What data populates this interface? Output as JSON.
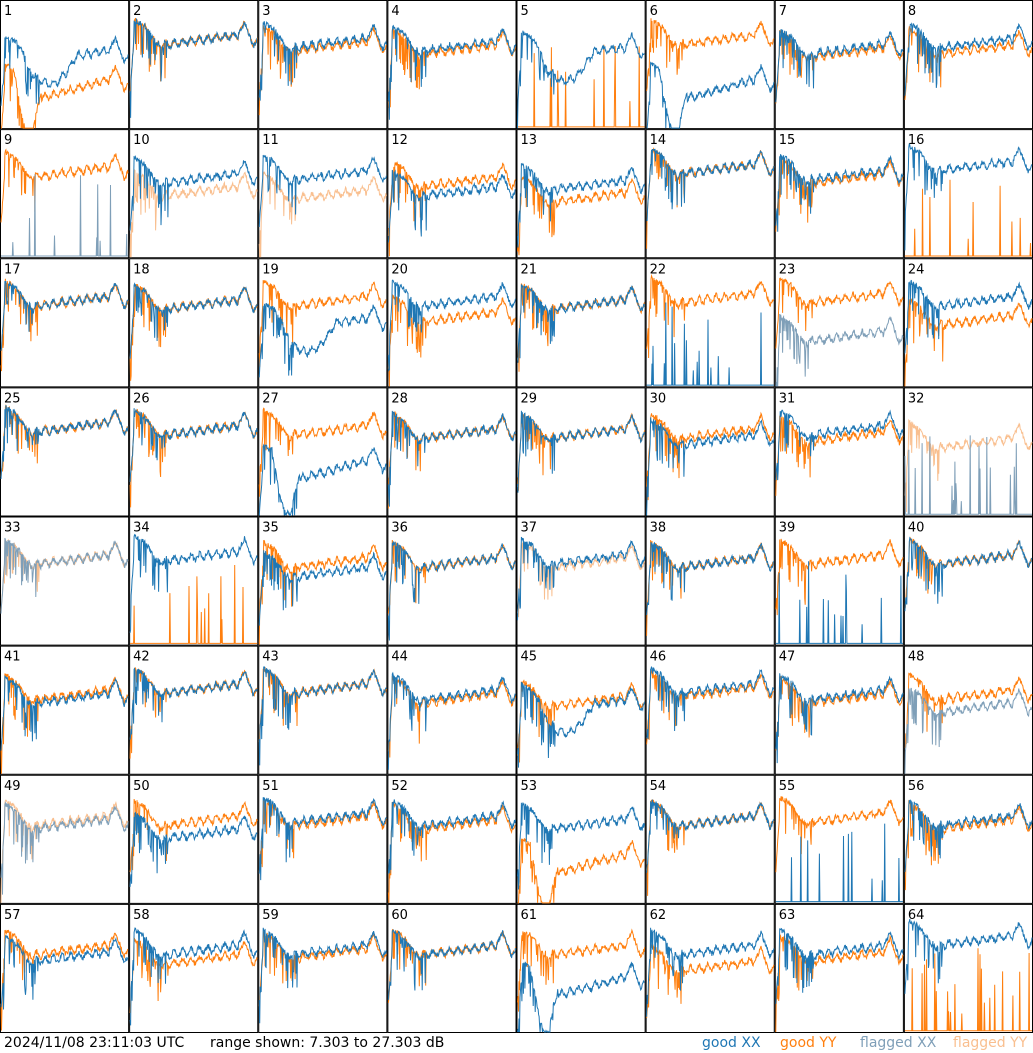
{
  "chart_data": {
    "type": "line",
    "layout": "small multiples, 8 x 8 grid of antenna spectra",
    "timestamp": "2024/11/08 23:11:03 UTC",
    "range_text": "range shown: 7.303 to 27.303 dB",
    "ylim": [
      7.303,
      27.303
    ],
    "unit": "dB",
    "grid": false,
    "legend_position": "bottom-right",
    "legend": [
      {
        "key": "good_xx",
        "label": "good XX",
        "color": "#1f77b4"
      },
      {
        "key": "good_yy",
        "label": "good YY",
        "color": "#ff7f0e"
      },
      {
        "key": "flagged_xx",
        "label": "flagged XX",
        "color": "#7f9fb8"
      },
      {
        "key": "flagged_yy",
        "label": "flagged YY",
        "color": "#f9bf8f"
      }
    ],
    "antennas": [
      {
        "label": "1",
        "xx": "good",
        "yy": "good",
        "xx_profile": "wide",
        "yy_profile": "dip",
        "xx_level": 19.5,
        "yy_level": 15.0
      },
      {
        "label": "2",
        "xx": "good",
        "yy": "good",
        "xx_profile": "std",
        "yy_profile": "std",
        "xx_level": 22.0,
        "yy_level": 22.0
      },
      {
        "label": "3",
        "xx": "good",
        "yy": "good",
        "xx_profile": "std",
        "yy_profile": "std",
        "xx_level": 21.5,
        "yy_level": 21.0
      },
      {
        "label": "4",
        "xx": "good",
        "yy": "good",
        "xx_profile": "std",
        "yy_profile": "std",
        "xx_level": 21.0,
        "yy_level": 20.5
      },
      {
        "label": "5",
        "xx": "good",
        "yy": "good",
        "xx_profile": "wide",
        "yy_profile": "spikes",
        "xx_level": 20.0,
        "yy_level": 7.5
      },
      {
        "label": "6",
        "xx": "good",
        "yy": "good",
        "xx_profile": "dip",
        "yy_profile": "std",
        "xx_level": 15.0,
        "yy_level": 22.0
      },
      {
        "label": "7",
        "xx": "good",
        "yy": "good",
        "xx_profile": "std",
        "yy_profile": "std",
        "xx_level": 20.5,
        "yy_level": 20.0
      },
      {
        "label": "8",
        "xx": "good",
        "yy": "good",
        "xx_profile": "std",
        "yy_profile": "std",
        "xx_level": 21.5,
        "yy_level": 20.5
      },
      {
        "label": "9",
        "xx": "flagged",
        "yy": "good",
        "xx_profile": "spikes",
        "yy_profile": "std",
        "xx_level": 7.5,
        "yy_level": 21.5
      },
      {
        "label": "10",
        "xx": "good",
        "yy": "flagged",
        "xx_profile": "std",
        "yy_profile": "std",
        "xx_level": 20.5,
        "yy_level": 18.5
      },
      {
        "label": "11",
        "xx": "good",
        "yy": "flagged",
        "xx_profile": "std",
        "yy_profile": "std",
        "xx_level": 21.0,
        "yy_level": 18.0
      },
      {
        "label": "12",
        "xx": "good",
        "yy": "good",
        "xx_profile": "std",
        "yy_profile": "std",
        "xx_level": 18.5,
        "yy_level": 20.0
      },
      {
        "label": "13",
        "xx": "good",
        "yy": "good",
        "xx_profile": "std",
        "yy_profile": "std",
        "xx_level": 19.5,
        "yy_level": 17.5
      },
      {
        "label": "14",
        "xx": "good",
        "yy": "good",
        "xx_profile": "std",
        "yy_profile": "std",
        "xx_level": 22.0,
        "yy_level": 22.0
      },
      {
        "label": "15",
        "xx": "good",
        "yy": "good",
        "xx_profile": "std",
        "yy_profile": "std",
        "xx_level": 21.0,
        "yy_level": 20.5
      },
      {
        "label": "16",
        "xx": "good",
        "yy": "good",
        "xx_profile": "std",
        "yy_profile": "spikes",
        "xx_level": 22.5,
        "yy_level": 7.5
      },
      {
        "label": "17",
        "xx": "good",
        "yy": "good",
        "xx_profile": "std",
        "yy_profile": "std",
        "xx_level": 21.5,
        "yy_level": 21.5
      },
      {
        "label": "18",
        "xx": "good",
        "yy": "good",
        "xx_profile": "std",
        "yy_profile": "std",
        "xx_level": 21.0,
        "yy_level": 21.0
      },
      {
        "label": "19",
        "xx": "good",
        "yy": "good",
        "xx_profile": "wide",
        "yy_profile": "std",
        "xx_level": 18.0,
        "yy_level": 21.5
      },
      {
        "label": "20",
        "xx": "good",
        "yy": "good",
        "xx_profile": "std",
        "yy_profile": "std",
        "xx_level": 21.5,
        "yy_level": 19.0
      },
      {
        "label": "21",
        "xx": "good",
        "yy": "good",
        "xx_profile": "std",
        "yy_profile": "std",
        "xx_level": 21.0,
        "yy_level": 21.0
      },
      {
        "label": "22",
        "xx": "good",
        "yy": "good",
        "xx_profile": "spikes",
        "yy_profile": "std",
        "xx_level": 7.5,
        "yy_level": 22.0
      },
      {
        "label": "23",
        "xx": "flagged",
        "yy": "good",
        "xx_profile": "std",
        "yy_profile": "std",
        "xx_level": 16.0,
        "yy_level": 22.0
      },
      {
        "label": "24",
        "xx": "good",
        "yy": "good",
        "xx_profile": "std",
        "yy_profile": "std",
        "xx_level": 21.5,
        "yy_level": 18.5
      },
      {
        "label": "25",
        "xx": "good",
        "yy": "good",
        "xx_profile": "std",
        "yy_profile": "std",
        "xx_level": 22.0,
        "yy_level": 22.0
      },
      {
        "label": "26",
        "xx": "good",
        "yy": "good",
        "xx_profile": "std",
        "yy_profile": "std",
        "xx_level": 21.5,
        "yy_level": 21.5
      },
      {
        "label": "27",
        "xx": "good",
        "yy": "good",
        "xx_profile": "dip",
        "yy_profile": "std",
        "xx_level": 16.0,
        "yy_level": 21.5
      },
      {
        "label": "28",
        "xx": "good",
        "yy": "good",
        "xx_profile": "std",
        "yy_profile": "std",
        "xx_level": 21.0,
        "yy_level": 21.0
      },
      {
        "label": "29",
        "xx": "good",
        "yy": "good",
        "xx_profile": "std",
        "yy_profile": "std",
        "xx_level": 21.0,
        "yy_level": 21.0
      },
      {
        "label": "30",
        "xx": "good",
        "yy": "good",
        "xx_profile": "std",
        "yy_profile": "std",
        "xx_level": 20.0,
        "yy_level": 21.0
      },
      {
        "label": "31",
        "xx": "good",
        "yy": "good",
        "xx_profile": "std",
        "yy_profile": "std",
        "xx_level": 21.5,
        "yy_level": 20.5
      },
      {
        "label": "32",
        "xx": "flagged",
        "yy": "flagged",
        "xx_profile": "spikes",
        "yy_profile": "std",
        "xx_level": 7.5,
        "yy_level": 19.5
      },
      {
        "label": "33",
        "xx": "flagged",
        "yy": "flagged",
        "xx_profile": "std",
        "yy_profile": "std",
        "xx_level": 21.5,
        "yy_level": 21.5
      },
      {
        "label": "34",
        "xx": "good",
        "yy": "good",
        "xx_profile": "std",
        "yy_profile": "spikes",
        "xx_level": 22.0,
        "yy_level": 7.5
      },
      {
        "label": "35",
        "xx": "good",
        "yy": "good",
        "xx_profile": "std",
        "yy_profile": "std",
        "xx_level": 19.5,
        "yy_level": 21.0
      },
      {
        "label": "36",
        "xx": "good",
        "yy": "good",
        "xx_profile": "std",
        "yy_profile": "std",
        "xx_level": 21.0,
        "yy_level": 21.0
      },
      {
        "label": "37",
        "xx": "good",
        "yy": "flagged",
        "xx_profile": "std",
        "yy_profile": "std",
        "xx_level": 21.5,
        "yy_level": 21.0
      },
      {
        "label": "38",
        "xx": "good",
        "yy": "good",
        "xx_profile": "std",
        "yy_profile": "std",
        "xx_level": 21.0,
        "yy_level": 21.0
      },
      {
        "label": "39",
        "xx": "good",
        "yy": "good",
        "xx_profile": "spikes",
        "yy_profile": "std",
        "xx_level": 7.5,
        "yy_level": 21.5
      },
      {
        "label": "40",
        "xx": "good",
        "yy": "good",
        "xx_profile": "std",
        "yy_profile": "std",
        "xx_level": 21.5,
        "yy_level": 21.5
      },
      {
        "label": "41",
        "xx": "good",
        "yy": "good",
        "xx_profile": "std",
        "yy_profile": "std",
        "xx_level": 20.0,
        "yy_level": 20.5
      },
      {
        "label": "42",
        "xx": "good",
        "yy": "good",
        "xx_profile": "std",
        "yy_profile": "std",
        "xx_level": 21.5,
        "yy_level": 21.5
      },
      {
        "label": "43",
        "xx": "good",
        "yy": "good",
        "xx_profile": "std",
        "yy_profile": "std",
        "xx_level": 21.5,
        "yy_level": 21.5
      },
      {
        "label": "44",
        "xx": "good",
        "yy": "good",
        "xx_profile": "std",
        "yy_profile": "std",
        "xx_level": 20.5,
        "yy_level": 20.0
      },
      {
        "label": "45",
        "xx": "good",
        "yy": "good",
        "xx_profile": "wide",
        "yy_profile": "std",
        "xx_level": 19.0,
        "yy_level": 19.5
      },
      {
        "label": "46",
        "xx": "good",
        "yy": "good",
        "xx_profile": "std",
        "yy_profile": "std",
        "xx_level": 21.5,
        "yy_level": 21.0
      },
      {
        "label": "47",
        "xx": "good",
        "yy": "good",
        "xx_profile": "std",
        "yy_profile": "std",
        "xx_level": 20.5,
        "yy_level": 20.0
      },
      {
        "label": "48",
        "xx": "flagged",
        "yy": "good",
        "xx_profile": "std",
        "yy_profile": "std",
        "xx_level": 18.5,
        "yy_level": 20.5
      },
      {
        "label": "49",
        "xx": "flagged",
        "yy": "flagged",
        "xx_profile": "std",
        "yy_profile": "std",
        "xx_level": 20.5,
        "yy_level": 21.0
      },
      {
        "label": "50",
        "xx": "good",
        "yy": "good",
        "xx_profile": "std",
        "yy_profile": "std",
        "xx_level": 19.0,
        "yy_level": 21.0
      },
      {
        "label": "51",
        "xx": "good",
        "yy": "good",
        "xx_profile": "std",
        "yy_profile": "std",
        "xx_level": 21.5,
        "yy_level": 21.0
      },
      {
        "label": "52",
        "xx": "good",
        "yy": "good",
        "xx_profile": "std",
        "yy_profile": "std",
        "xx_level": 21.0,
        "yy_level": 20.5
      },
      {
        "label": "53",
        "xx": "good",
        "yy": "good",
        "xx_profile": "std",
        "yy_profile": "dip",
        "xx_level": 20.5,
        "yy_level": 15.0
      },
      {
        "label": "54",
        "xx": "good",
        "yy": "good",
        "xx_profile": "std",
        "yy_profile": "std",
        "xx_level": 21.0,
        "yy_level": 21.0
      },
      {
        "label": "55",
        "xx": "good",
        "yy": "good",
        "xx_profile": "spikes",
        "yy_profile": "std",
        "xx_level": 7.5,
        "yy_level": 21.5
      },
      {
        "label": "56",
        "xx": "good",
        "yy": "good",
        "xx_profile": "std",
        "yy_profile": "std",
        "xx_level": 21.0,
        "yy_level": 20.5
      },
      {
        "label": "57",
        "xx": "good",
        "yy": "good",
        "xx_profile": "std",
        "yy_profile": "std",
        "xx_level": 20.0,
        "yy_level": 21.0
      },
      {
        "label": "58",
        "xx": "good",
        "yy": "good",
        "xx_profile": "std",
        "yy_profile": "std",
        "xx_level": 21.0,
        "yy_level": 19.5
      },
      {
        "label": "59",
        "xx": "good",
        "yy": "good",
        "xx_profile": "std",
        "yy_profile": "std",
        "xx_level": 21.0,
        "yy_level": 20.5
      },
      {
        "label": "60",
        "xx": "good",
        "yy": "good",
        "xx_profile": "std",
        "yy_profile": "std",
        "xx_level": 21.0,
        "yy_level": 21.0
      },
      {
        "label": "61",
        "xx": "good",
        "yy": "good",
        "xx_profile": "dip",
        "yy_profile": "std",
        "xx_level": 16.0,
        "yy_level": 21.0
      },
      {
        "label": "62",
        "xx": "good",
        "yy": "good",
        "xx_profile": "std",
        "yy_profile": "std",
        "xx_level": 21.0,
        "yy_level": 18.5
      },
      {
        "label": "63",
        "xx": "good",
        "yy": "good",
        "xx_profile": "std",
        "yy_profile": "std",
        "xx_level": 21.0,
        "yy_level": 20.0
      },
      {
        "label": "64",
        "xx": "good",
        "yy": "good",
        "xx_profile": "std",
        "yy_profile": "spikes",
        "xx_level": 22.5,
        "yy_level": 7.5
      }
    ]
  }
}
